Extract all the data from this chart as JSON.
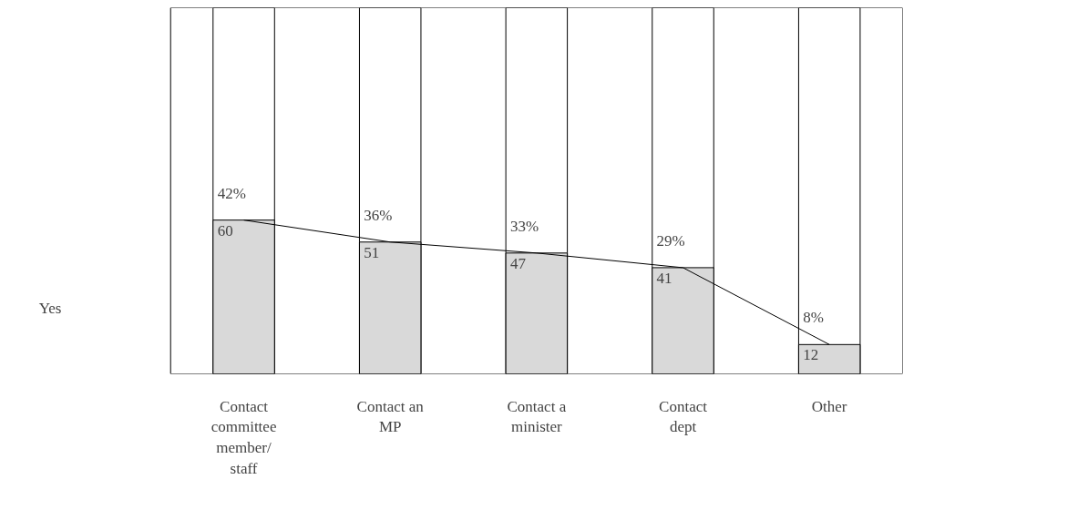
{
  "chart_data": {
    "type": "bar",
    "categories": [
      "Contact committee member/ staff",
      "Contact an MP",
      "Contact a minister",
      "Contact dept",
      "Other"
    ],
    "ylim": [
      0,
      100
    ],
    "series": [
      {
        "type": "line",
        "color": "#000000",
        "values": [
          42,
          36,
          33,
          29,
          8
        ]
      },
      {
        "name": "Yes",
        "color": "#d9d9d9",
        "values": [
          42,
          36,
          33,
          29,
          8
        ],
        "value_labels": [
          "42%",
          "36%",
          "33%",
          "29%",
          "8%"
        ]
      }
    ],
    "annotations": [
      "60",
      "51",
      "47",
      "41",
      "12"
    ],
    "tick_labels": "x",
    "grid": false
  }
}
